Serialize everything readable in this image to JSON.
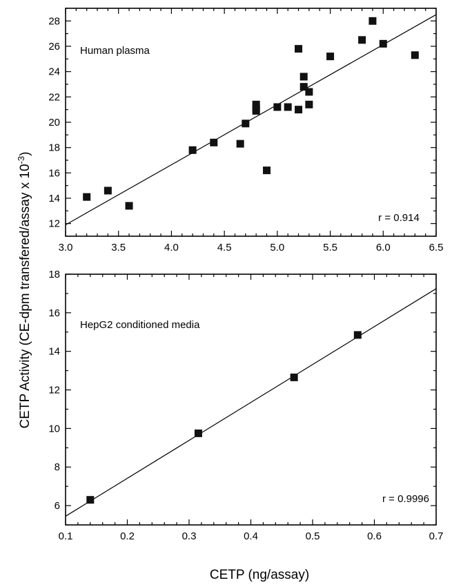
{
  "chart_data": [
    {
      "type": "scatter",
      "annotation": "Human plasma",
      "r_label": "r = 0.914",
      "xlim": [
        3.0,
        6.5
      ],
      "ylim": [
        11,
        29
      ],
      "x_ticks": [
        "3.0",
        "3.5",
        "4.0",
        "4.5",
        "5.0",
        "5.5",
        "6.0",
        "6.5"
      ],
      "y_ticks": [
        "12",
        "14",
        "16",
        "18",
        "20",
        "22",
        "24",
        "26",
        "28"
      ],
      "points": [
        {
          "x": 3.2,
          "y": 14.1
        },
        {
          "x": 3.4,
          "y": 14.6
        },
        {
          "x": 3.6,
          "y": 13.4
        },
        {
          "x": 4.2,
          "y": 17.8
        },
        {
          "x": 4.4,
          "y": 18.4
        },
        {
          "x": 4.65,
          "y": 18.3
        },
        {
          "x": 4.7,
          "y": 19.9
        },
        {
          "x": 4.8,
          "y": 21.1
        },
        {
          "x": 4.8,
          "y": 21.4
        },
        {
          "x": 4.8,
          "y": 20.9
        },
        {
          "x": 4.9,
          "y": 16.2
        },
        {
          "x": 5.0,
          "y": 21.2
        },
        {
          "x": 5.1,
          "y": 21.2
        },
        {
          "x": 5.2,
          "y": 21.0
        },
        {
          "x": 5.2,
          "y": 25.8
        },
        {
          "x": 5.25,
          "y": 23.6
        },
        {
          "x": 5.25,
          "y": 22.8
        },
        {
          "x": 5.3,
          "y": 22.4
        },
        {
          "x": 5.3,
          "y": 21.4
        },
        {
          "x": 5.5,
          "y": 25.2
        },
        {
          "x": 5.8,
          "y": 26.5
        },
        {
          "x": 5.9,
          "y": 28.0
        },
        {
          "x": 6.0,
          "y": 26.2
        },
        {
          "x": 6.3,
          "y": 25.3
        }
      ],
      "fit_line": {
        "x": [
          3.0,
          6.5
        ],
        "y": [
          11.9,
          28.5
        ]
      }
    },
    {
      "type": "scatter",
      "annotation": "HepG2 conditioned media",
      "r_label": "r = 0.9996",
      "xlim": [
        0.1,
        0.7
      ],
      "ylim": [
        5,
        18
      ],
      "x_ticks": [
        "0.1",
        "0.2",
        "0.3",
        "0.4",
        "0.5",
        "0.6",
        "0.7"
      ],
      "y_ticks": [
        "6",
        "8",
        "10",
        "12",
        "14",
        "16",
        "18"
      ],
      "points": [
        {
          "x": 0.14,
          "y": 6.3
        },
        {
          "x": 0.315,
          "y": 9.75
        },
        {
          "x": 0.47,
          "y": 12.65
        },
        {
          "x": 0.573,
          "y": 14.85
        }
      ],
      "fit_line": {
        "x": [
          0.1,
          0.7
        ],
        "y": [
          5.45,
          17.25
        ]
      }
    }
  ],
  "xlabel": "CETP (ng/assay)",
  "ylabel": "CETP Activity (CE-dpm transfered/assay x 10",
  "ylabel_exponent": "-3",
  "ylabel_close": ")"
}
